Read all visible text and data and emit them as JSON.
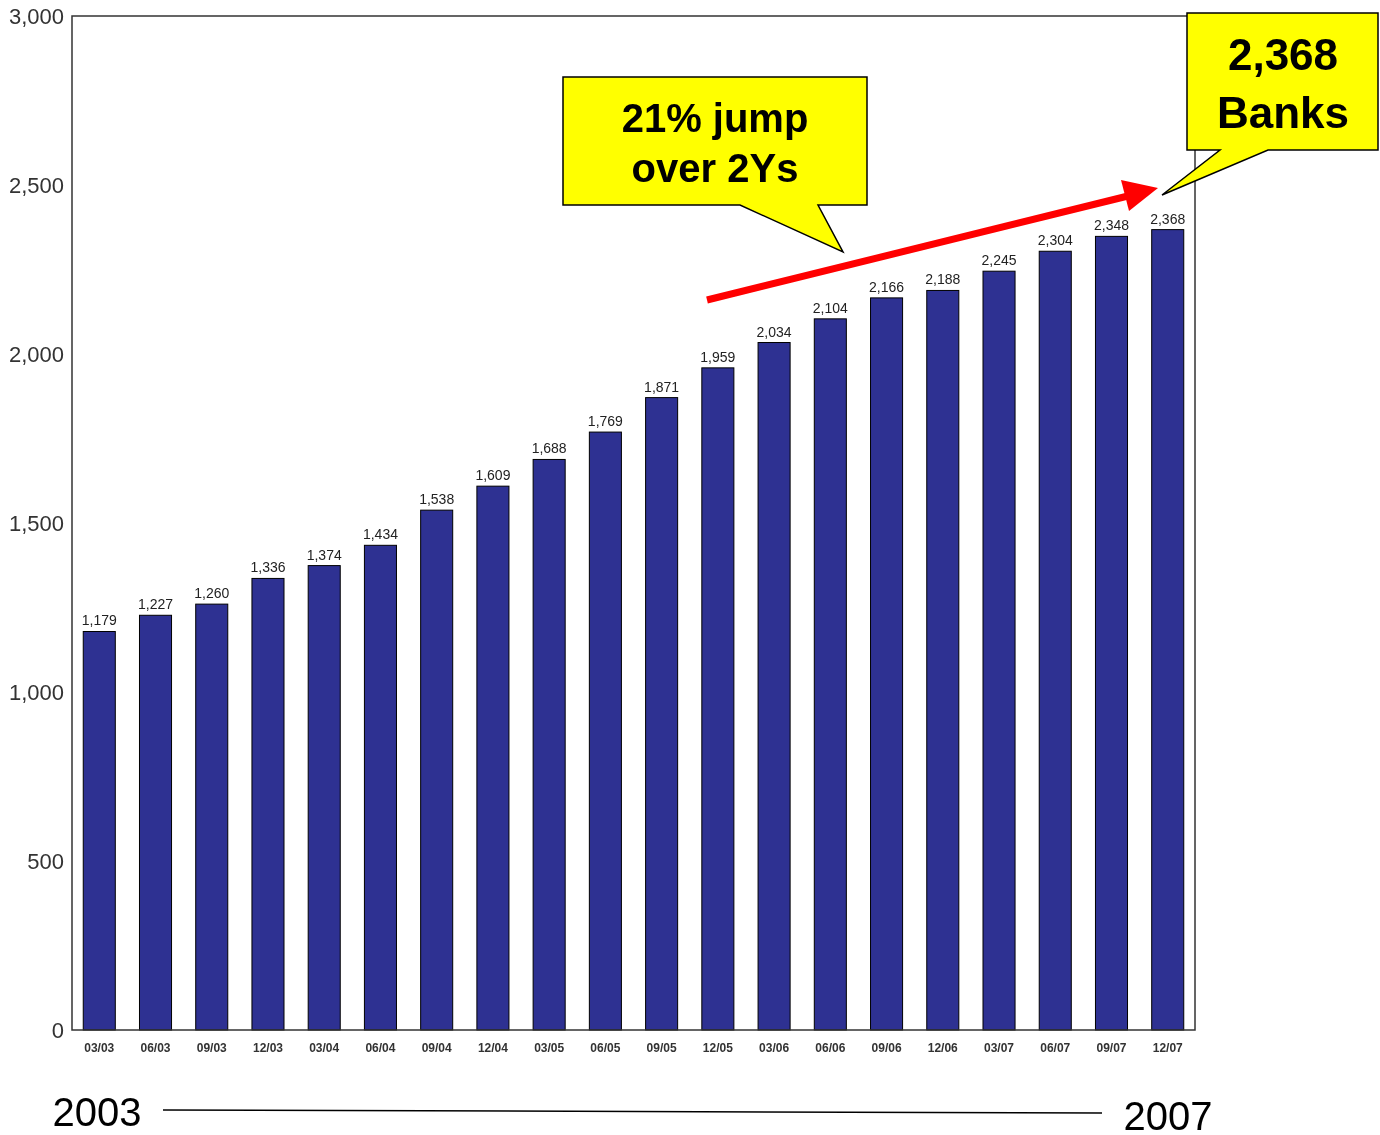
{
  "chart_data": {
    "type": "bar",
    "categories": [
      "03/03",
      "06/03",
      "09/03",
      "12/03",
      "03/04",
      "06/04",
      "09/04",
      "12/04",
      "03/05",
      "06/05",
      "09/05",
      "12/05",
      "03/06",
      "06/06",
      "09/06",
      "12/06",
      "03/07",
      "06/07",
      "09/07",
      "12/07"
    ],
    "values": [
      1179,
      1227,
      1260,
      1336,
      1374,
      1434,
      1538,
      1609,
      1688,
      1769,
      1871,
      1959,
      2034,
      2104,
      2166,
      2188,
      2245,
      2304,
      2348,
      2368
    ],
    "color": "#2e3192",
    "ylim": [
      0,
      3000
    ],
    "yticks": [
      {
        "value": 0,
        "label": "0"
      },
      {
        "value": 500,
        "label": "500"
      },
      {
        "value": 1000,
        "label": "1,000"
      },
      {
        "value": 1500,
        "label": "1,500"
      },
      {
        "value": 2000,
        "label": "2,000"
      },
      {
        "value": 2500,
        "label": "2,500"
      },
      {
        "value": 3000,
        "label": "3,000"
      }
    ],
    "grid": false,
    "value_labels": [
      "1,179",
      "1,227",
      "1,260",
      "1,336",
      "1,374",
      "1,434",
      "1,538",
      "1,609",
      "1,688",
      "1,769",
      "1,871",
      "1,959",
      "2,034",
      "2,104",
      "2,166",
      "2,188",
      "2,245",
      "2,304",
      "2,348",
      "2,368"
    ],
    "annotations": [
      "21% jump over 2Ys",
      "2,368 Banks",
      "2003",
      "2007"
    ]
  }
}
